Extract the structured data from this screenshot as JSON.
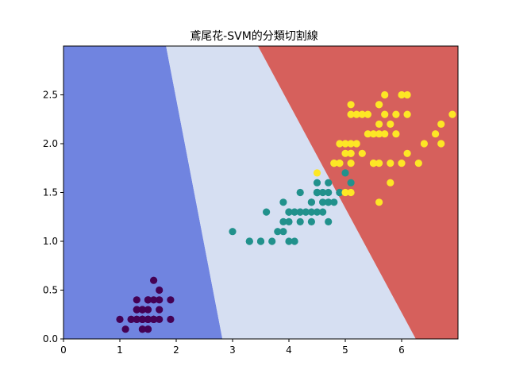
{
  "chart_data": {
    "type": "scatter",
    "title": "鳶尾花-SVM的分類切割線",
    "xlabel": "",
    "ylabel": "",
    "xlim": [
      0,
      7
    ],
    "ylim": [
      0,
      3
    ],
    "xticks": [
      "0",
      "1",
      "2",
      "3",
      "4",
      "5",
      "6"
    ],
    "yticks": [
      "0.0",
      "0.5",
      "1.0",
      "1.5",
      "2.0",
      "2.5"
    ],
    "grid": false,
    "decision_regions": {
      "colors": [
        "#7084e0",
        "#d6dff2",
        "#d6605c"
      ],
      "boundary_1": [
        [
          1.82,
          3.0
        ],
        [
          2.82,
          0.0
        ]
      ],
      "boundary_2": [
        [
          3.45,
          3.0
        ],
        [
          6.25,
          0.0
        ]
      ]
    },
    "series": [
      {
        "color": "#440154",
        "points": [
          [
            1.4,
            0.2
          ],
          [
            1.4,
            0.2
          ],
          [
            1.3,
            0.2
          ],
          [
            1.5,
            0.2
          ],
          [
            1.4,
            0.2
          ],
          [
            1.7,
            0.4
          ],
          [
            1.4,
            0.3
          ],
          [
            1.5,
            0.2
          ],
          [
            1.4,
            0.2
          ],
          [
            1.5,
            0.1
          ],
          [
            1.5,
            0.2
          ],
          [
            1.6,
            0.2
          ],
          [
            1.4,
            0.1
          ],
          [
            1.1,
            0.1
          ],
          [
            1.2,
            0.2
          ],
          [
            1.5,
            0.4
          ],
          [
            1.3,
            0.4
          ],
          [
            1.4,
            0.3
          ],
          [
            1.7,
            0.3
          ],
          [
            1.5,
            0.3
          ],
          [
            1.7,
            0.2
          ],
          [
            1.5,
            0.4
          ],
          [
            1.0,
            0.2
          ],
          [
            1.7,
            0.5
          ],
          [
            1.9,
            0.2
          ],
          [
            1.6,
            0.2
          ],
          [
            1.6,
            0.4
          ],
          [
            1.5,
            0.2
          ],
          [
            1.4,
            0.2
          ],
          [
            1.6,
            0.2
          ],
          [
            1.6,
            0.2
          ],
          [
            1.5,
            0.4
          ],
          [
            1.5,
            0.1
          ],
          [
            1.4,
            0.2
          ],
          [
            1.5,
            0.2
          ],
          [
            1.2,
            0.2
          ],
          [
            1.3,
            0.2
          ],
          [
            1.4,
            0.1
          ],
          [
            1.3,
            0.2
          ],
          [
            1.5,
            0.2
          ],
          [
            1.3,
            0.3
          ],
          [
            1.3,
            0.3
          ],
          [
            1.3,
            0.2
          ],
          [
            1.6,
            0.6
          ],
          [
            1.9,
            0.4
          ],
          [
            1.4,
            0.3
          ],
          [
            1.6,
            0.2
          ],
          [
            1.4,
            0.2
          ],
          [
            1.5,
            0.2
          ],
          [
            1.4,
            0.2
          ]
        ]
      },
      {
        "color": "#21918c",
        "points": [
          [
            4.7,
            1.4
          ],
          [
            4.5,
            1.5
          ],
          [
            4.9,
            1.5
          ],
          [
            4.0,
            1.3
          ],
          [
            4.6,
            1.5
          ],
          [
            4.5,
            1.3
          ],
          [
            4.7,
            1.6
          ],
          [
            3.3,
            1.0
          ],
          [
            4.6,
            1.3
          ],
          [
            3.9,
            1.4
          ],
          [
            3.5,
            1.0
          ],
          [
            4.2,
            1.5
          ],
          [
            4.0,
            1.0
          ],
          [
            4.7,
            1.4
          ],
          [
            3.6,
            1.3
          ],
          [
            4.4,
            1.4
          ],
          [
            4.5,
            1.5
          ],
          [
            4.1,
            1.0
          ],
          [
            4.5,
            1.5
          ],
          [
            3.9,
            1.1
          ],
          [
            4.8,
            1.8
          ],
          [
            4.0,
            1.3
          ],
          [
            4.9,
            1.5
          ],
          [
            4.7,
            1.2
          ],
          [
            4.3,
            1.3
          ],
          [
            4.4,
            1.4
          ],
          [
            4.8,
            1.4
          ],
          [
            5.0,
            1.7
          ],
          [
            4.5,
            1.5
          ],
          [
            3.5,
            1.0
          ],
          [
            3.8,
            1.1
          ],
          [
            3.7,
            1.0
          ],
          [
            3.9,
            1.2
          ],
          [
            5.1,
            1.6
          ],
          [
            4.5,
            1.5
          ],
          [
            4.5,
            1.6
          ],
          [
            4.7,
            1.5
          ],
          [
            4.4,
            1.3
          ],
          [
            4.1,
            1.3
          ],
          [
            4.0,
            1.3
          ],
          [
            4.4,
            1.2
          ],
          [
            4.6,
            1.4
          ],
          [
            4.0,
            1.2
          ],
          [
            3.3,
            1.0
          ],
          [
            4.2,
            1.3
          ],
          [
            4.2,
            1.2
          ],
          [
            4.2,
            1.3
          ],
          [
            4.3,
            1.3
          ],
          [
            3.0,
            1.1
          ],
          [
            4.1,
            1.3
          ]
        ]
      },
      {
        "color": "#fde725",
        "points": [
          [
            6.0,
            2.5
          ],
          [
            5.1,
            1.9
          ],
          [
            5.9,
            2.1
          ],
          [
            5.6,
            1.8
          ],
          [
            5.8,
            2.2
          ],
          [
            6.6,
            2.1
          ],
          [
            4.5,
            1.7
          ],
          [
            6.3,
            1.8
          ],
          [
            5.8,
            1.8
          ],
          [
            6.1,
            2.5
          ],
          [
            5.1,
            2.0
          ],
          [
            5.3,
            1.9
          ],
          [
            5.5,
            2.1
          ],
          [
            5.0,
            2.0
          ],
          [
            5.1,
            2.4
          ],
          [
            5.3,
            2.3
          ],
          [
            5.5,
            1.8
          ],
          [
            6.7,
            2.2
          ],
          [
            6.9,
            2.3
          ],
          [
            5.0,
            1.5
          ],
          [
            5.7,
            2.3
          ],
          [
            4.9,
            2.0
          ],
          [
            6.7,
            2.0
          ],
          [
            4.9,
            1.8
          ],
          [
            5.7,
            2.1
          ],
          [
            6.0,
            1.8
          ],
          [
            4.8,
            1.8
          ],
          [
            4.9,
            1.8
          ],
          [
            5.6,
            2.1
          ],
          [
            5.8,
            1.6
          ],
          [
            6.1,
            1.9
          ],
          [
            6.4,
            2.0
          ],
          [
            5.6,
            2.2
          ],
          [
            5.1,
            1.5
          ],
          [
            5.6,
            1.4
          ],
          [
            6.1,
            2.3
          ],
          [
            5.6,
            2.4
          ],
          [
            5.5,
            1.8
          ],
          [
            4.8,
            1.8
          ],
          [
            5.4,
            2.1
          ],
          [
            5.6,
            2.4
          ],
          [
            5.1,
            2.3
          ],
          [
            5.1,
            1.9
          ],
          [
            5.9,
            2.3
          ],
          [
            5.7,
            2.5
          ],
          [
            5.2,
            2.3
          ],
          [
            5.0,
            1.9
          ],
          [
            5.2,
            2.0
          ],
          [
            5.4,
            2.3
          ],
          [
            5.1,
            1.8
          ]
        ]
      }
    ]
  }
}
